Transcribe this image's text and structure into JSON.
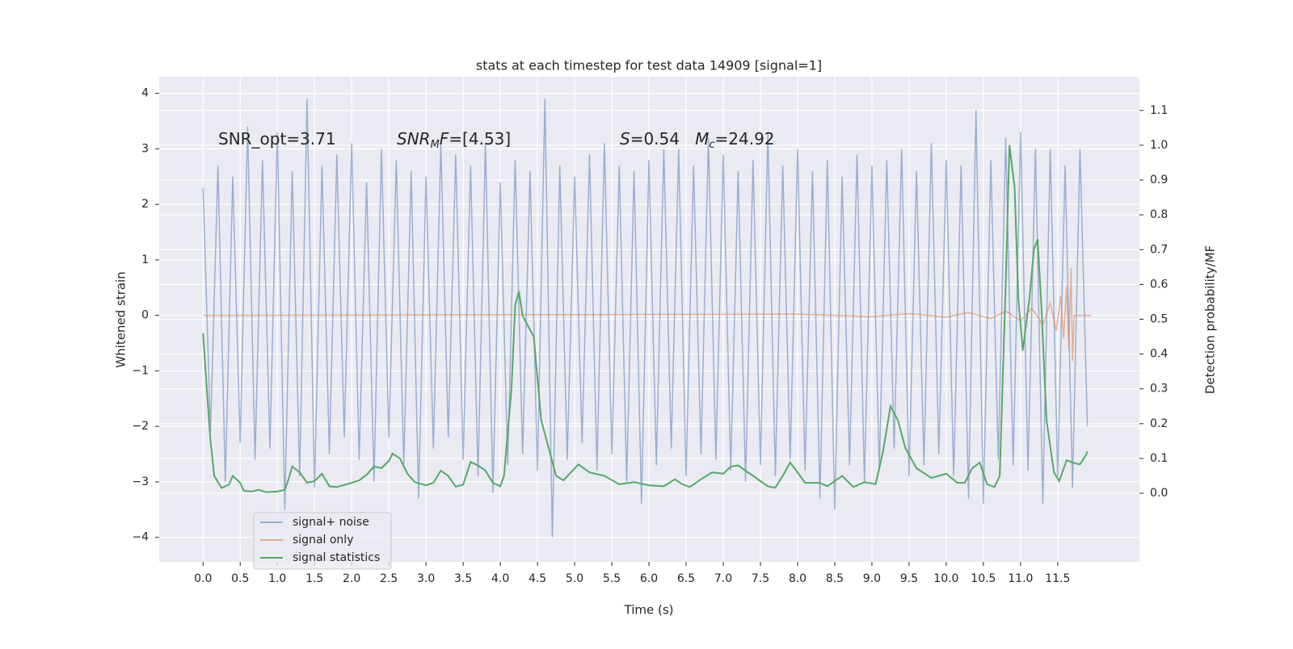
{
  "chart_data": {
    "type": "line",
    "title": "stats at each timestep for test data 14909 [signal=1]",
    "xlabel": "Time (s)",
    "ylabel": "Whitened strain",
    "y2label": "Detection probability/MF",
    "xlim": [
      -0.59,
      12.6
    ],
    "ylim": [
      -4.44,
      4.3
    ],
    "y2lim": [
      -0.197,
      1.197
    ],
    "xticks": [
      {
        "value": 0,
        "label": "0.0"
      },
      0.5,
      {
        "value": 1,
        "label": "1.0"
      },
      1.5,
      {
        "value": 2,
        "label": "2.0"
      },
      2.5,
      {
        "value": 3,
        "label": "3.0"
      },
      3.5,
      {
        "value": 4,
        "label": "4.0"
      },
      4.5,
      {
        "value": 5,
        "label": "5.0"
      },
      5.5,
      {
        "value": 6,
        "label": "6.0"
      },
      6.5,
      {
        "value": 7,
        "label": "7.0"
      },
      7.5,
      {
        "value": 8,
        "label": "8.0"
      },
      8.5,
      {
        "value": 9,
        "label": "9.0"
      },
      9.5,
      {
        "value": 10,
        "label": "10.0"
      },
      10.5,
      {
        "value": 11,
        "label": "11.0"
      },
      11.5
    ],
    "yticks": [
      {
        "value": -4,
        "label": "−4"
      },
      {
        "value": -3,
        "label": "−3"
      },
      {
        "value": -2,
        "label": "−2"
      },
      {
        "value": -1,
        "label": "−1"
      },
      0,
      1,
      2,
      3,
      4
    ],
    "y2ticks": [
      {
        "value": 0,
        "label": "0.0"
      },
      0.1,
      0.2,
      0.3,
      0.4,
      0.5,
      0.6,
      0.7,
      0.8,
      0.9,
      {
        "value": 1,
        "label": "1.0"
      },
      1.1
    ],
    "grid": true,
    "legend": "lower left",
    "annotations": [
      {
        "parts": [
          {
            "text": "SNR_opt=3.71"
          }
        ]
      },
      {
        "parts": [
          {
            "text": "SNR",
            "italic": true
          },
          {
            "text": "M",
            "italic": true,
            "sub": true
          },
          {
            "text": "F",
            "italic": true
          },
          {
            "text": "=[4.53]"
          }
        ]
      },
      {
        "parts": [
          {
            "text": "S",
            "italic": true
          },
          {
            "text": "=0.54   "
          },
          {
            "text": "M",
            "italic": true
          },
          {
            "text": "c",
            "italic": true,
            "sub": true
          },
          {
            "text": "=24.92"
          }
        ]
      }
    ],
    "series": [
      {
        "name": "signal+ noise",
        "color": "#4c72b0",
        "opacity": 0.5,
        "x": [
          0.0,
          0.1,
          0.2,
          0.3,
          0.4,
          0.5,
          0.6,
          0.7,
          0.8,
          0.9,
          1.0,
          1.1,
          1.2,
          1.3,
          1.4,
          1.5,
          1.6,
          1.7,
          1.8,
          1.9,
          2.0,
          2.1,
          2.2,
          2.3,
          2.4,
          2.5,
          2.6,
          2.7,
          2.8,
          2.9,
          3.0,
          3.1,
          3.2,
          3.3,
          3.4,
          3.5,
          3.6,
          3.7,
          3.8,
          3.9,
          4.0,
          4.1,
          4.2,
          4.3,
          4.4,
          4.5,
          4.6,
          4.7,
          4.8,
          4.9,
          5.0,
          5.1,
          5.2,
          5.3,
          5.4,
          5.5,
          5.6,
          5.7,
          5.8,
          5.9,
          6.0,
          6.1,
          6.2,
          6.3,
          6.4,
          6.5,
          6.6,
          6.7,
          6.8,
          6.9,
          7.0,
          7.1,
          7.2,
          7.3,
          7.4,
          7.5,
          7.6,
          7.7,
          7.8,
          7.9,
          8.0,
          8.1,
          8.2,
          8.3,
          8.4,
          8.5,
          8.6,
          8.7,
          8.8,
          8.9,
          9.0,
          9.1,
          9.2,
          9.3,
          9.4,
          9.5,
          9.6,
          9.7,
          9.8,
          9.9,
          10.0,
          10.1,
          10.2,
          10.3,
          10.4,
          10.5,
          10.6,
          10.7,
          10.8,
          10.9,
          11.0,
          11.1,
          11.2,
          11.3,
          11.4,
          11.5,
          11.6,
          11.7,
          11.8,
          11.9
        ],
        "values": [
          2.3,
          -2.1,
          2.7,
          -3.0,
          2.5,
          -2.3,
          3.4,
          -2.6,
          2.8,
          -2.4,
          3.3,
          -3.5,
          2.6,
          -2.9,
          3.9,
          -3.1,
          2.7,
          -2.5,
          2.9,
          -2.2,
          3.1,
          -2.6,
          2.4,
          -3.0,
          3.0,
          -2.2,
          2.8,
          -2.7,
          2.6,
          -3.3,
          2.5,
          -2.4,
          3.1,
          -2.2,
          2.9,
          -2.6,
          2.7,
          -2.9,
          3.1,
          -3.2,
          2.4,
          -2.7,
          2.8,
          -2.5,
          2.6,
          -2.8,
          3.9,
          -4.0,
          2.7,
          -2.6,
          2.5,
          -2.3,
          2.9,
          -2.8,
          3.1,
          -2.5,
          2.7,
          -3.0,
          2.6,
          -3.4,
          2.8,
          -2.7,
          3.0,
          -2.4,
          3.0,
          -2.9,
          2.7,
          -2.5,
          3.2,
          -2.6,
          2.9,
          -2.8,
          2.6,
          -3.0,
          2.8,
          -2.7,
          3.3,
          -2.9,
          2.7,
          -2.6,
          3.0,
          -2.8,
          2.6,
          -3.3,
          2.8,
          -3.5,
          2.5,
          -2.7,
          2.9,
          -3.0,
          2.7,
          -2.8,
          2.8,
          -2.4,
          3.0,
          -2.9,
          2.6,
          -2.7,
          3.1,
          -2.5,
          2.8,
          -2.9,
          2.7,
          -3.3,
          3.7,
          -3.4,
          2.8,
          -2.6,
          3.2,
          -2.7,
          3.3,
          -2.8,
          3.0,
          -3.4,
          3.0,
          -2.9,
          2.7,
          -3.1,
          3.0,
          -2.0
        ]
      },
      {
        "name": "signal only",
        "color": "#dd8452",
        "opacity": 0.6,
        "x": [
          0.0,
          8.0,
          9.0,
          9.5,
          10.0,
          10.3,
          10.6,
          10.8,
          11.0,
          11.15,
          11.3,
          11.4,
          11.48,
          11.54,
          11.58,
          11.62,
          11.65,
          11.68,
          11.7,
          11.72,
          11.95
        ],
        "values": [
          0,
          0.02,
          -0.02,
          0.03,
          -0.03,
          0.05,
          -0.06,
          0.08,
          -0.1,
          0.13,
          -0.17,
          0.22,
          -0.28,
          0.35,
          -0.42,
          0.52,
          -0.6,
          0.85,
          -0.82,
          0,
          0
        ]
      },
      {
        "name": "signal statistics",
        "color": "#55a868",
        "opacity": 1,
        "axis": "y2",
        "x": [
          0,
          0.05,
          0.1,
          0.15,
          0.25,
          0.35,
          0.4,
          0.5,
          0.55,
          0.65,
          0.75,
          0.85,
          1.0,
          1.1,
          1.15,
          1.2,
          1.3,
          1.4,
          1.5,
          1.6,
          1.7,
          1.8,
          2.0,
          2.1,
          2.2,
          2.3,
          2.4,
          2.5,
          2.55,
          2.65,
          2.75,
          2.85,
          3.0,
          3.1,
          3.2,
          3.3,
          3.4,
          3.5,
          3.6,
          3.7,
          3.8,
          3.9,
          4.0,
          4.05,
          4.15,
          4.2,
          4.25,
          4.3,
          4.45,
          4.55,
          4.65,
          4.75,
          4.85,
          4.95,
          5.05,
          5.2,
          5.4,
          5.6,
          5.8,
          6.0,
          6.2,
          6.35,
          6.45,
          6.55,
          6.7,
          6.85,
          7.0,
          7.1,
          7.2,
          7.4,
          7.6,
          7.7,
          7.8,
          7.9,
          8.0,
          8.1,
          8.3,
          8.4,
          8.6,
          8.75,
          8.9,
          9.05,
          9.15,
          9.25,
          9.35,
          9.45,
          9.6,
          9.8,
          10.0,
          10.15,
          10.25,
          10.35,
          10.45,
          10.55,
          10.65,
          10.72,
          10.8,
          10.85,
          10.92,
          10.97,
          11.03,
          11.12,
          11.18,
          11.23,
          11.28,
          11.35,
          11.45,
          11.52,
          11.62,
          11.7,
          11.8,
          11.88,
          11.9
        ],
        "values": [
          0.46,
          0.3,
          0.15,
          0.05,
          0.015,
          0.025,
          0.05,
          0.03,
          0.007,
          0.005,
          0.01,
          0.003,
          0.005,
          0.01,
          0.04,
          0.077,
          0.06,
          0.03,
          0.035,
          0.056,
          0.02,
          0.018,
          0.03,
          0.037,
          0.053,
          0.077,
          0.072,
          0.093,
          0.114,
          0.1,
          0.056,
          0.032,
          0.023,
          0.03,
          0.065,
          0.05,
          0.019,
          0.025,
          0.09,
          0.08,
          0.065,
          0.03,
          0.02,
          0.05,
          0.3,
          0.54,
          0.58,
          0.51,
          0.45,
          0.21,
          0.13,
          0.05,
          0.037,
          0.06,
          0.083,
          0.06,
          0.05,
          0.026,
          0.032,
          0.023,
          0.02,
          0.04,
          0.026,
          0.018,
          0.04,
          0.06,
          0.056,
          0.077,
          0.08,
          0.05,
          0.02,
          0.016,
          0.05,
          0.088,
          0.06,
          0.03,
          0.03,
          0.02,
          0.05,
          0.018,
          0.032,
          0.026,
          0.12,
          0.25,
          0.21,
          0.13,
          0.072,
          0.044,
          0.056,
          0.03,
          0.03,
          0.072,
          0.088,
          0.026,
          0.018,
          0.05,
          0.6,
          1.0,
          0.88,
          0.56,
          0.41,
          0.56,
          0.7,
          0.73,
          0.54,
          0.21,
          0.06,
          0.035,
          0.095,
          0.088,
          0.083,
          0.11,
          0.12
        ]
      }
    ]
  }
}
